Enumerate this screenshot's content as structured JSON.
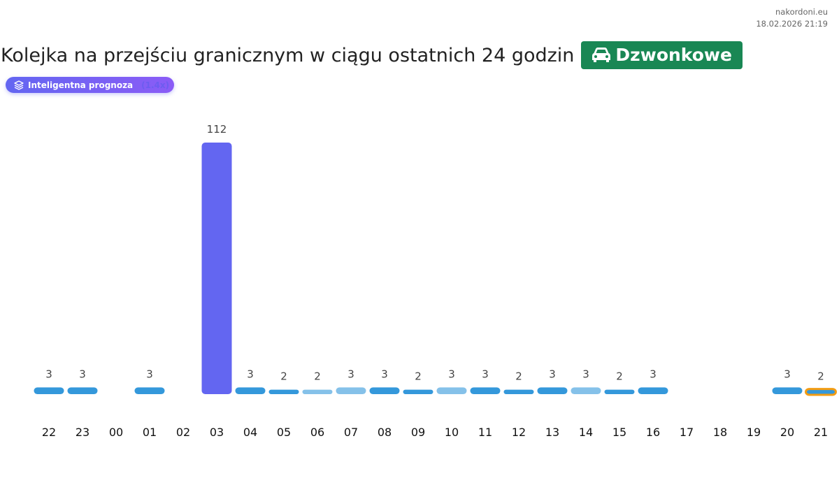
{
  "site": {
    "name": "nakordoni.eu",
    "timestamp": "18.02.2026 21:19"
  },
  "header": {
    "title": "Kolejka na przejściu granicznym w ciągu ostatnich 24 godzin",
    "crossing": "Dzwonkowe",
    "crossing_icon": "car-icon"
  },
  "badge": {
    "label": "Inteligentna prognoza",
    "multiplier": "(1.4x)",
    "icon": "layers-icon"
  },
  "colors": {
    "normal": "#3498db",
    "light": "#85c1e9",
    "peak": "#6366f1",
    "current_outline": "#f39c12",
    "crossing_bg": "#198754"
  },
  "chart_data": {
    "type": "bar",
    "categories": [
      "22",
      "23",
      "00",
      "01",
      "02",
      "03",
      "04",
      "05",
      "06",
      "07",
      "08",
      "09",
      "10",
      "11",
      "12",
      "13",
      "14",
      "15",
      "16",
      "17",
      "18",
      "19",
      "20",
      "21"
    ],
    "values": [
      3,
      3,
      null,
      3,
      null,
      112,
      3,
      2,
      2,
      3,
      3,
      2,
      3,
      3,
      2,
      3,
      3,
      2,
      3,
      null,
      null,
      null,
      3,
      2
    ],
    "bar_style": [
      "normal",
      "normal",
      null,
      "normal",
      null,
      "peak",
      "normal",
      "normal",
      "light",
      "light",
      "normal",
      "normal",
      "light",
      "normal",
      "normal",
      "normal",
      "light",
      "normal",
      "normal",
      null,
      null,
      null,
      "normal",
      "current"
    ],
    "ylim": [
      0,
      112
    ],
    "grid": false,
    "title": "",
    "xlabel": "",
    "ylabel": ""
  }
}
